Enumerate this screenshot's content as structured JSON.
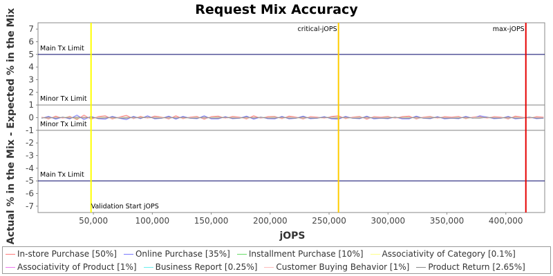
{
  "chart_data": {
    "type": "line",
    "title": "Request Mix Accuracy",
    "xlabel": "jOPS",
    "ylabel": "Actual % in the Mix - Expected % in the Mix",
    "xlim": [
      3000,
      433000
    ],
    "ylim": [
      -7.5,
      7.5
    ],
    "x_ticks": [
      50000,
      100000,
      150000,
      200000,
      250000,
      300000,
      350000,
      400000
    ],
    "x_tick_labels": [
      "50,000",
      "100,000",
      "150,000",
      "200,000",
      "250,000",
      "300,000",
      "350,000",
      "400,000"
    ],
    "y_ticks": [
      7,
      6,
      5,
      4,
      3,
      2,
      1,
      0,
      -1,
      -2,
      -3,
      -4,
      -5,
      -6,
      -7
    ],
    "grid": false,
    "legend_position": "bottom",
    "horizontal_lines": [
      {
        "y": 5,
        "label": "Main Tx Limit",
        "color": "#000066"
      },
      {
        "y": 1,
        "label": "Minor Tx Limit",
        "color": "#808080"
      },
      {
        "y": -1,
        "label": "Minor Tx Limit",
        "color": "#808080"
      },
      {
        "y": -5,
        "label": "Main Tx Limit",
        "color": "#000066"
      }
    ],
    "vertical_lines": [
      {
        "x": 48000,
        "label": "Validation Start jOPS",
        "color": "#ffff00"
      },
      {
        "x": 258000,
        "label": "critical-jOPS",
        "color": "#ffcc00"
      },
      {
        "x": 417000,
        "label": "max-jOPS",
        "color": "#e60000"
      }
    ],
    "x": [
      6000,
      12000,
      18000,
      24000,
      30000,
      36000,
      42000,
      48000,
      54000,
      60000,
      66000,
      72000,
      78000,
      84000,
      90000,
      96000,
      102000,
      108000,
      114000,
      120000,
      126000,
      132000,
      138000,
      144000,
      150000,
      156000,
      162000,
      168000,
      174000,
      180000,
      186000,
      192000,
      198000,
      204000,
      210000,
      216000,
      222000,
      228000,
      234000,
      240000,
      246000,
      252000,
      258000,
      264000,
      270000,
      276000,
      282000,
      288000,
      294000,
      300000,
      306000,
      312000,
      318000,
      324000,
      330000,
      336000,
      342000,
      348000,
      354000,
      360000,
      366000,
      372000,
      378000,
      384000,
      390000,
      396000,
      402000,
      408000,
      414000,
      420000,
      426000,
      432000
    ],
    "series": [
      {
        "name": "In-store Purchase [50%]",
        "color": "#ff7777",
        "values": [
          0.05,
          -0.1,
          0.12,
          -0.05,
          0.1,
          -0.15,
          0.2,
          -0.12,
          0.08,
          0.15,
          -0.1,
          0.05,
          0.18,
          -0.08,
          0.1,
          -0.05,
          0.12,
          0.05,
          -0.1,
          0.15,
          -0.08,
          0.05,
          0.1,
          -0.12,
          0.08,
          0.12,
          -0.05,
          0.1,
          0.05,
          -0.1,
          0.15,
          -0.05,
          0.08,
          0.1,
          -0.08,
          0.12,
          0.05,
          -0.1,
          0.08,
          0.05,
          -0.05,
          0.1,
          0.15,
          -0.08,
          0.05,
          0.1,
          -0.12,
          0.08,
          0.05,
          0.1,
          -0.05,
          0.08,
          0.12,
          -0.1,
          0.05,
          0.1,
          -0.05,
          0.08,
          0.05,
          0.1,
          -0.08,
          0.05,
          0.1,
          -0.05,
          0.08,
          0.05,
          -0.1,
          0.12,
          0.05,
          -0.05,
          0.08,
          0.05
        ]
      },
      {
        "name": "Online Purchase [35%]",
        "color": "#7777ff",
        "values": [
          -0.05,
          0.1,
          -0.12,
          0.05,
          -0.1,
          0.2,
          -0.15,
          0.1,
          -0.08,
          -0.12,
          0.1,
          -0.05,
          -0.15,
          0.1,
          -0.08,
          0.15,
          -0.1,
          -0.05,
          0.12,
          -0.12,
          0.1,
          -0.05,
          -0.08,
          0.15,
          -0.1,
          -0.1,
          0.08,
          -0.08,
          -0.05,
          0.12,
          -0.12,
          0.05,
          -0.08,
          -0.1,
          0.1,
          -0.1,
          -0.05,
          0.12,
          -0.08,
          -0.05,
          0.08,
          -0.1,
          -0.12,
          0.1,
          -0.05,
          -0.08,
          0.12,
          -0.1,
          -0.05,
          -0.08,
          0.05,
          -0.1,
          -0.1,
          0.12,
          -0.05,
          -0.08,
          0.08,
          -0.1,
          -0.05,
          -0.08,
          0.1,
          -0.05,
          0.15,
          0.05,
          -0.08,
          -0.05,
          0.1,
          -0.1,
          -0.05,
          0.05,
          -0.08,
          -0.05
        ]
      },
      {
        "name": "Installment Purchase [10%]",
        "color": "#66dd66",
        "values": [
          0.02,
          -0.05,
          0.05,
          -0.02,
          0.05,
          -0.08,
          0.06,
          -0.05,
          0.03,
          0.05,
          -0.05,
          0.02,
          0.06,
          -0.04,
          0.05,
          -0.02,
          0.04,
          0.03,
          -0.05,
          0.05,
          -0.04,
          0.02,
          0.05,
          -0.05,
          0.03,
          0.05,
          -0.02,
          0.04,
          0.02,
          -0.05,
          0.05,
          -0.02,
          0.03,
          0.05,
          -0.04,
          0.05,
          0.02,
          -0.05,
          0.03,
          0.02,
          -0.02,
          0.05,
          0.06,
          -0.04,
          0.02,
          0.05,
          -0.05,
          0.03,
          0.02,
          0.05,
          -0.02,
          0.03,
          0.05,
          -0.05,
          0.02,
          0.05,
          -0.02,
          0.03,
          0.02,
          0.05,
          -0.04,
          0.02,
          0.05,
          -0.02,
          0.03,
          0.02,
          -0.05,
          0.05,
          0.02,
          -0.02,
          0.03,
          0.02
        ]
      },
      {
        "name": "Associativity of Category [0.1%]",
        "color": "#ffff88",
        "values": [
          0.01,
          -0.01,
          0.01,
          0.0,
          0.01,
          -0.01,
          0.01,
          0.0,
          0.01,
          0.0,
          -0.01,
          0.01,
          0.0,
          -0.01,
          0.01,
          0.0,
          0.01,
          -0.01,
          0.0,
          0.01,
          -0.01,
          0.0,
          0.01,
          0.0,
          -0.01,
          0.01,
          0.0,
          0.01,
          -0.01,
          0.0,
          0.01,
          0.0,
          -0.01,
          0.01,
          0.0,
          0.01,
          -0.01,
          0.0,
          0.01,
          0.0,
          -0.01,
          0.01,
          0.0,
          0.01,
          -0.01,
          0.0,
          0.01,
          0.0,
          -0.01,
          0.01,
          0.0,
          0.01,
          -0.01,
          0.0,
          0.01,
          0.0,
          -0.01,
          0.01,
          0.0,
          0.01,
          -0.01,
          0.0,
          0.01,
          0.0,
          -0.01,
          0.01,
          0.0,
          0.01,
          -0.01,
          0.0,
          0.01,
          0.0
        ]
      },
      {
        "name": "Associativity of Product [1%]",
        "color": "#ee77ee",
        "values": [
          0.02,
          -0.03,
          0.03,
          -0.02,
          0.02,
          -0.03,
          0.04,
          -0.02,
          0.02,
          0.03,
          -0.02,
          0.02,
          0.04,
          -0.03,
          0.02,
          -0.02,
          0.03,
          0.02,
          -0.03,
          0.03,
          -0.02,
          0.02,
          0.03,
          -0.03,
          0.02,
          0.03,
          -0.02,
          0.02,
          0.02,
          -0.03,
          0.03,
          -0.02,
          0.02,
          0.03,
          -0.02,
          0.03,
          0.02,
          -0.03,
          0.02,
          0.02,
          -0.02,
          0.03,
          0.04,
          -0.02,
          0.02,
          0.03,
          -0.03,
          0.02,
          0.02,
          0.03,
          -0.02,
          0.02,
          0.03,
          -0.03,
          0.02,
          0.03,
          -0.02,
          0.02,
          0.02,
          0.03,
          -0.02,
          0.02,
          0.03,
          -0.02,
          0.02,
          0.02,
          -0.03,
          0.03,
          0.02,
          -0.02,
          0.02,
          0.02
        ]
      },
      {
        "name": "Business Report [0.25%]",
        "color": "#66eeee",
        "values": [
          0.01,
          -0.02,
          0.02,
          -0.01,
          0.01,
          -0.02,
          0.02,
          -0.01,
          0.01,
          0.02,
          -0.01,
          0.01,
          0.02,
          -0.02,
          0.01,
          -0.01,
          0.02,
          0.01,
          -0.02,
          0.02,
          -0.01,
          0.01,
          0.02,
          -0.02,
          0.01,
          0.02,
          -0.01,
          0.01,
          0.01,
          -0.02,
          0.02,
          -0.01,
          0.01,
          0.02,
          -0.01,
          0.02,
          0.01,
          -0.02,
          0.01,
          0.01,
          -0.01,
          0.02,
          0.02,
          -0.01,
          0.01,
          0.02,
          -0.02,
          0.01,
          0.01,
          0.02,
          -0.01,
          0.01,
          0.02,
          -0.02,
          0.01,
          0.02,
          -0.01,
          0.01,
          0.01,
          0.02,
          -0.01,
          0.01,
          0.02,
          -0.01,
          0.01,
          0.01,
          -0.02,
          0.02,
          0.01,
          -0.01,
          0.01,
          0.01
        ]
      },
      {
        "name": "Customer Buying Behavior [1%]",
        "color": "#ffbbbb",
        "values": [
          0.03,
          -0.02,
          0.04,
          -0.03,
          0.02,
          -0.04,
          0.03,
          -0.02,
          0.03,
          0.02,
          -0.03,
          0.03,
          0.04,
          -0.02,
          0.03,
          -0.03,
          0.02,
          0.03,
          -0.02,
          0.04,
          -0.03,
          0.02,
          0.03,
          -0.02,
          0.04,
          0.02,
          -0.03,
          0.03,
          0.02,
          -0.03,
          0.04,
          -0.02,
          0.03,
          0.02,
          -0.03,
          0.03,
          0.02,
          -0.02,
          0.04,
          0.02,
          -0.03,
          0.03,
          0.02,
          -0.03,
          0.03,
          0.02,
          -0.02,
          0.04,
          0.02,
          0.03,
          -0.03,
          0.02,
          0.04,
          -0.02,
          0.03,
          0.02,
          -0.03,
          0.03,
          0.02,
          0.04,
          -0.02,
          0.03,
          0.02,
          -0.03,
          0.04,
          0.02,
          -0.02,
          0.03,
          0.02,
          -0.03,
          0.03,
          0.02
        ]
      },
      {
        "name": "Product Return [2.65%]",
        "color": "#888888",
        "values": [
          -0.03,
          0.04,
          -0.05,
          0.03,
          -0.04,
          0.05,
          -0.03,
          0.04,
          -0.05,
          -0.03,
          0.04,
          -0.03,
          -0.05,
          0.04,
          -0.03,
          0.05,
          -0.04,
          -0.03,
          0.05,
          -0.04,
          0.03,
          -0.03,
          -0.04,
          0.05,
          -0.03,
          -0.04,
          0.03,
          -0.04,
          -0.03,
          0.05,
          -0.04,
          0.03,
          -0.03,
          -0.04,
          0.04,
          -0.04,
          -0.03,
          0.05,
          -0.03,
          -0.03,
          0.03,
          -0.04,
          -0.05,
          0.04,
          -0.03,
          -0.04,
          0.05,
          -0.03,
          -0.03,
          -0.04,
          0.03,
          -0.03,
          -0.04,
          0.05,
          -0.03,
          -0.04,
          0.03,
          -0.04,
          -0.03,
          -0.04,
          0.04,
          -0.03,
          -0.04,
          0.03,
          -0.03,
          -0.03,
          0.04,
          -0.04,
          -0.03,
          0.03,
          -0.04,
          -0.03
        ]
      }
    ]
  }
}
